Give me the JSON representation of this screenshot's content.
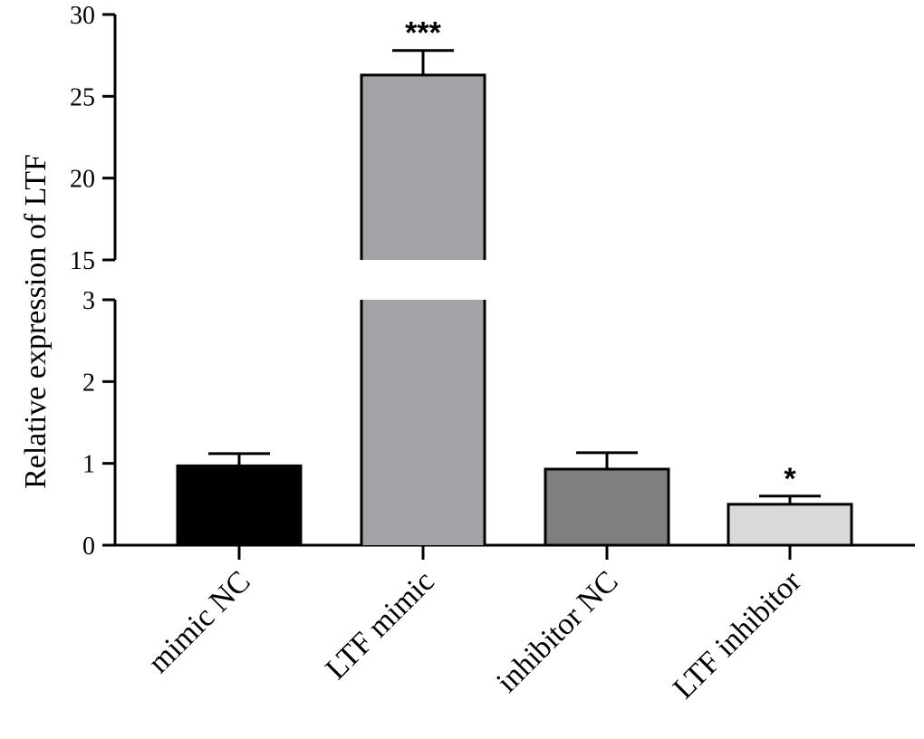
{
  "chart_data": {
    "type": "bar",
    "title": "",
    "xlabel": "",
    "ylabel": "Relative expression of LTF",
    "axis_break": {
      "lower_range": [
        0,
        3
      ],
      "upper_range": [
        15,
        30
      ]
    },
    "lower_ticks": [
      "0",
      "1",
      "2",
      "3"
    ],
    "upper_ticks": [
      "15",
      "20",
      "25",
      "30"
    ],
    "categories": [
      "mimic NC",
      "LTF mimic",
      "inhibitor NC",
      "LTF inhibitor"
    ],
    "values": [
      0.97,
      26.3,
      0.93,
      0.5
    ],
    "errors": [
      0.15,
      1.5,
      0.2,
      0.1
    ],
    "significance": [
      "",
      "***",
      "",
      "*"
    ],
    "colors": [
      "#000000",
      "#a3a2a7",
      "#7f7f7f",
      "#d9d9d9"
    ]
  }
}
